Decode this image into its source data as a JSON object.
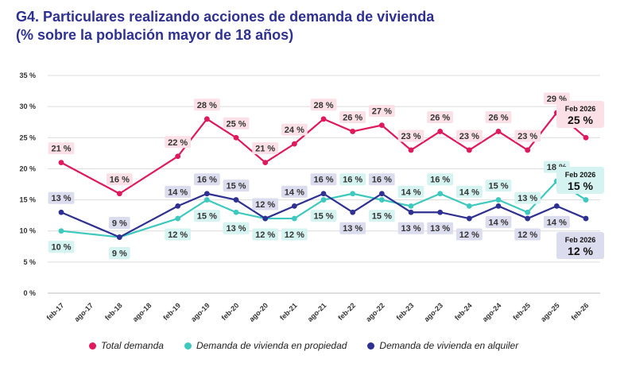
{
  "title_line1": "G4. Particulares realizando acciones de demanda de vivienda",
  "title_line2": "(% sobre la población mayor de 18 años)",
  "colors": {
    "total": "#e0185c",
    "propiedad": "#3ec9bf",
    "alquiler": "#2e3192",
    "total_label_bg": "#fbe0e8",
    "propiedad_label_bg": "#d5f4f1",
    "alquiler_label_bg": "#dcdcef",
    "grid": "#dcdcdc",
    "axis_text": "#333333"
  },
  "chart_data": {
    "type": "line",
    "categories": [
      "feb-17",
      "ago-17",
      "feb-18",
      "ago-18",
      "feb-19",
      "ago-19",
      "feb-20",
      "ago-20",
      "feb-21",
      "ago-21",
      "feb-22",
      "ago-22",
      "feb-23",
      "ago-23",
      "feb-24",
      "ago-24",
      "feb-25",
      "ago-25",
      "feb-26"
    ],
    "y_ticks": [
      "0 %",
      "5 %",
      "10 %",
      "15 %",
      "20 %",
      "25 %",
      "30 %",
      "35 %"
    ],
    "ylim": [
      0,
      35
    ],
    "grid": true,
    "legend_placement": "bottom",
    "series": [
      {
        "key": "total",
        "name": "Total demanda",
        "values": [
          21,
          null,
          16,
          null,
          22,
          28,
          25,
          21,
          24,
          28,
          26,
          27,
          23,
          26,
          23,
          26,
          23,
          29,
          25
        ],
        "labels": [
          "21 %",
          null,
          "16 %",
          null,
          "22 %",
          "28 %",
          "25 %",
          "21 %",
          "24 %",
          "28 %",
          "26 %",
          "27 %",
          "23 %",
          "26 %",
          "23 %",
          "26 %",
          "23 %",
          "29 %",
          null
        ]
      },
      {
        "key": "propiedad",
        "name": "Demanda de vivienda en propiedad",
        "values": [
          10,
          null,
          9,
          null,
          12,
          15,
          13,
          12,
          12,
          15,
          16,
          15,
          14,
          16,
          14,
          15,
          13,
          18,
          15
        ],
        "labels": [
          "10 %",
          null,
          "9 %",
          null,
          "12 %",
          "15 %",
          "13 %",
          "12 %",
          "12 %",
          "15 %",
          "16 %",
          "15 %",
          "14 %",
          "16 %",
          "14 %",
          "15 %",
          "13 %",
          "18 %",
          null
        ]
      },
      {
        "key": "alquiler",
        "name": "Demanda de vivienda en alquiler",
        "values": [
          13,
          null,
          9,
          null,
          14,
          16,
          15,
          12,
          14,
          16,
          13,
          16,
          13,
          13,
          12,
          14,
          12,
          14,
          12
        ],
        "labels": [
          "13 %",
          null,
          "9 %",
          null,
          "14 %",
          "16 %",
          "15 %",
          "12 %",
          "14 %",
          "16 %",
          "13 %",
          "16 %",
          "13 %",
          "13 %",
          "12 %",
          "14 %",
          "12 %",
          "14 %",
          null
        ]
      }
    ],
    "end_callouts": [
      {
        "series": "total",
        "caption": "Feb 2026",
        "value": "25 %"
      },
      {
        "series": "propiedad",
        "caption": "Feb 2026",
        "value": "15 %"
      },
      {
        "series": "alquiler",
        "caption": "Feb 2026",
        "value": "12 %"
      }
    ]
  }
}
